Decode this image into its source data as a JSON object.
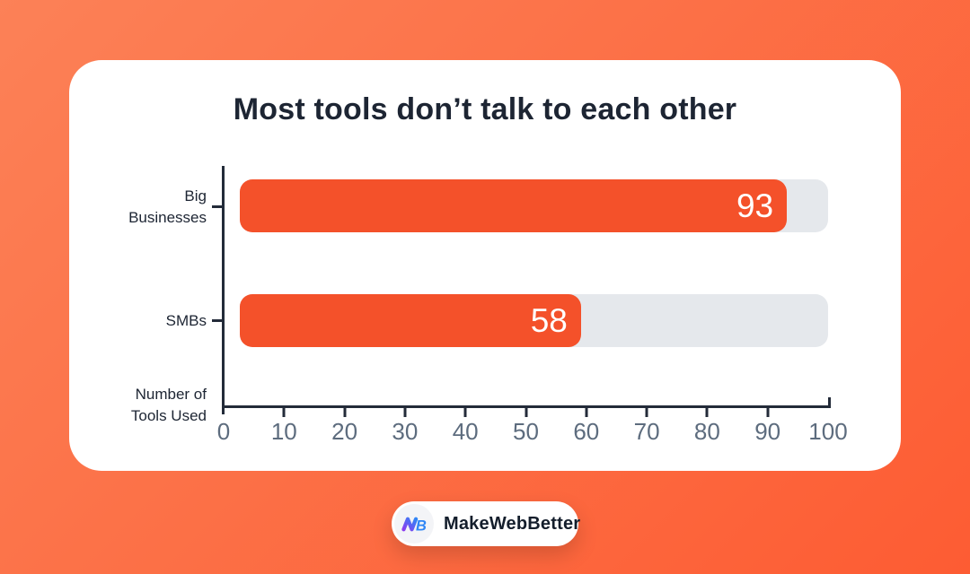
{
  "theme": {
    "background_gradient": [
      "#fc8157",
      "#fd5c33"
    ],
    "card_bg": "#ffffff",
    "bar_color": "#f4512a",
    "track_color": "#e5e8ec",
    "ink": "#1d2533",
    "axis_color": "#232b39",
    "tick_label_color": "#5d6c7e",
    "value_label_color": "#ffffff",
    "logo_gradient": [
      "#8b3df0",
      "#2f86f6"
    ]
  },
  "chart_data": {
    "type": "bar",
    "orientation": "horizontal",
    "title": "Most tools don’t talk to each other",
    "categories": [
      "Big Businesses",
      "SMBs"
    ],
    "values": [
      93,
      58
    ],
    "category_label_lines": [
      [
        "Big",
        "Businesses"
      ],
      [
        "SMBs"
      ]
    ],
    "xlabel": "Number of Tools Used",
    "xlabel_lines": [
      "Number of",
      "Tools Used"
    ],
    "xlim": [
      0,
      100
    ],
    "x_ticks": [
      0,
      10,
      20,
      30,
      40,
      50,
      60,
      70,
      80,
      90,
      100
    ],
    "track_full_value": 100,
    "value_labels_inside": true,
    "legend": "none",
    "grid": "off"
  },
  "footer": {
    "brand": "MakeWebBetter"
  }
}
